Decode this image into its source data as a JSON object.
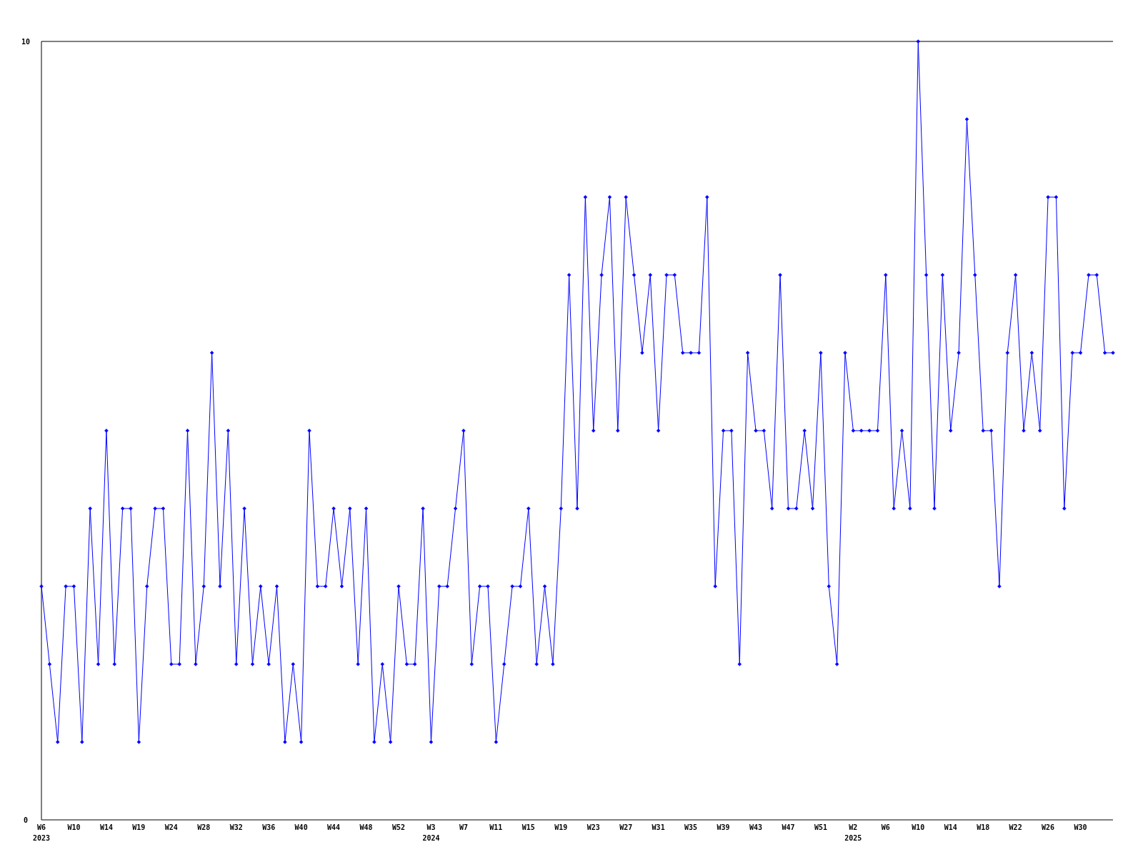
{
  "chart_data": {
    "type": "line",
    "categories": [
      "W6\n2023",
      null,
      null,
      null,
      "W10",
      null,
      null,
      null,
      "W14",
      null,
      null,
      null,
      "W19",
      null,
      null,
      null,
      "W24",
      null,
      null,
      null,
      "W28",
      null,
      null,
      null,
      "W32",
      null,
      null,
      null,
      "W36",
      null,
      null,
      null,
      "W40",
      null,
      null,
      null,
      "W44",
      null,
      null,
      null,
      "W48",
      null,
      null,
      null,
      "W52",
      null,
      null,
      null,
      "W3\n2024",
      null,
      null,
      null,
      "W7",
      null,
      null,
      null,
      "W11",
      null,
      null,
      null,
      "W15",
      null,
      null,
      null,
      "W19",
      null,
      null,
      null,
      "W23",
      null,
      null,
      null,
      "W27",
      null,
      null,
      null,
      "W31",
      null,
      null,
      null,
      "W35",
      null,
      null,
      null,
      "W39",
      null,
      null,
      null,
      "W43",
      null,
      null,
      null,
      "W47",
      null,
      null,
      null,
      "W51",
      null,
      null,
      null,
      "W2\n2025",
      null,
      null,
      null,
      "W6",
      null,
      null,
      null,
      "W10",
      null,
      null,
      null,
      "W14",
      null,
      null,
      null,
      "W18",
      null,
      null,
      null,
      "W22",
      null,
      null,
      null,
      "W26",
      null,
      null,
      null,
      "W30",
      null,
      null,
      null,
      null
    ],
    "series": [
      {
        "color": "#0000ff",
        "values": [
          3,
          2,
          1,
          3,
          3,
          1,
          4,
          2,
          5,
          2,
          4,
          4,
          1,
          3,
          4,
          4,
          2,
          2,
          5,
          2,
          3,
          6,
          3,
          5,
          2,
          4,
          2,
          3,
          2,
          3,
          1,
          2,
          1,
          5,
          3,
          3,
          4,
          3,
          4,
          2,
          4,
          1,
          2,
          1,
          3,
          2,
          2,
          4,
          1,
          3,
          3,
          4,
          5,
          2,
          3,
          3,
          1,
          2,
          3,
          3,
          4,
          2,
          3,
          2,
          4,
          7,
          4,
          8,
          5,
          7,
          8,
          5,
          8,
          7,
          6,
          7,
          5,
          7,
          7,
          6,
          6,
          6,
          8,
          3,
          5,
          5,
          2,
          6,
          5,
          5,
          4,
          7,
          4,
          4,
          5,
          4,
          6,
          3,
          2,
          6,
          5,
          5,
          5,
          5,
          7,
          4,
          5,
          4,
          10,
          7,
          4,
          7,
          5,
          6,
          9,
          7,
          5,
          5,
          3,
          6,
          7,
          5,
          6,
          5,
          8,
          8,
          4,
          6,
          6,
          7,
          7,
          6,
          6
        ]
      }
    ],
    "ylim": [
      0,
      10
    ],
    "yticks": [
      0,
      10
    ],
    "grid": false,
    "marker": "diamond",
    "line_style": "solid"
  }
}
